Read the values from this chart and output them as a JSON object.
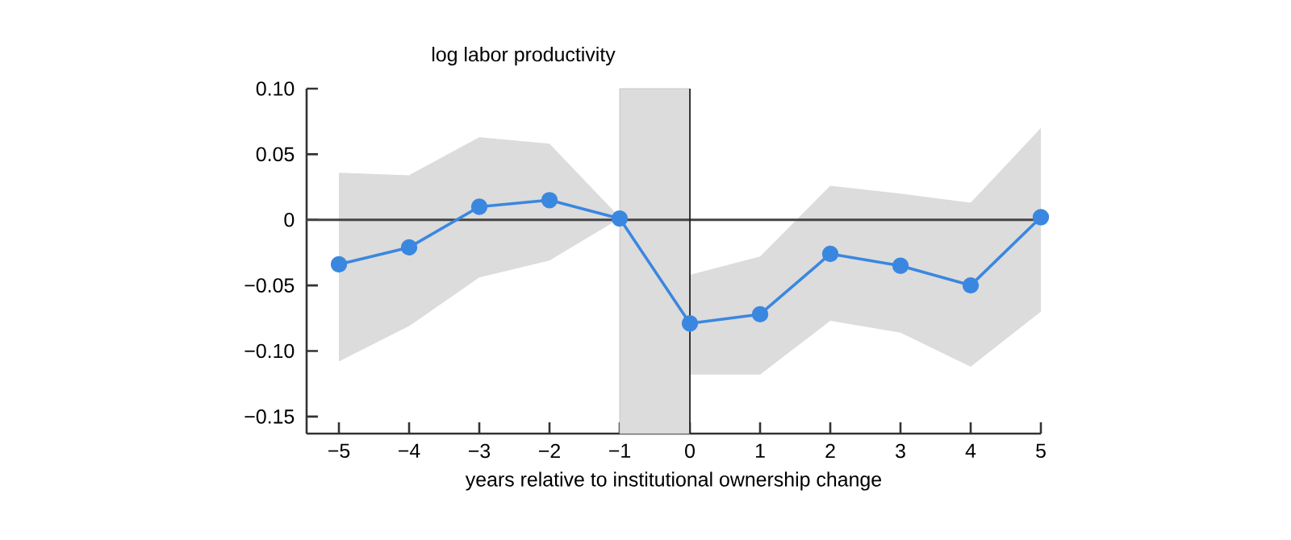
{
  "chart_data": {
    "type": "line",
    "ylabel": "log labor productivity",
    "xlabel": "years relative to institutional ownership change",
    "x": [
      -5,
      -4,
      -3,
      -2,
      -1,
      0,
      1,
      2,
      3,
      4,
      5
    ],
    "series": [
      {
        "color": "#3a87e0",
        "values": [
          -0.034,
          -0.021,
          0.01,
          0.015,
          0.001,
          -0.079,
          -0.072,
          -0.026,
          -0.035,
          -0.05,
          0.002
        ],
        "upper": [
          0.036,
          0.034,
          0.063,
          0.058,
          0.002,
          -0.042,
          -0.028,
          0.026,
          0.02,
          0.013,
          0.07
        ],
        "lower": [
          -0.108,
          -0.081,
          -0.044,
          -0.031,
          0.001,
          -0.118,
          -0.118,
          -0.077,
          -0.086,
          -0.112,
          -0.07
        ]
      }
    ],
    "xlim": [
      -5.46,
      5
    ],
    "ylim": [
      -0.163,
      0.1
    ],
    "xticks": [
      {
        "value": -5,
        "label": "−5"
      },
      {
        "value": -4,
        "label": "−4"
      },
      {
        "value": -3,
        "label": "−3"
      },
      {
        "value": -2,
        "label": "−2"
      },
      {
        "value": -1,
        "label": "−1"
      },
      0,
      1,
      2,
      3,
      4,
      5
    ],
    "yticks": [
      {
        "value": -0.15,
        "label": "−0.15"
      },
      {
        "value": -0.1,
        "label": "−0.10"
      },
      {
        "value": -0.05,
        "label": "−0.05"
      },
      0,
      {
        "value": 0.05,
        "label": "0.05"
      },
      {
        "value": 0.1,
        "label": "0.10"
      }
    ],
    "ref_lines": [
      {
        "axis": "y",
        "value": 0,
        "color": "#444444"
      },
      {
        "axis": "x",
        "value": 0,
        "color": "#222222"
      }
    ],
    "bands": [
      {
        "axis": "x",
        "from": -1,
        "to": 0,
        "color": "#dcdcdc"
      }
    ],
    "marker": "circle",
    "line_style": "solid",
    "grid": false
  }
}
